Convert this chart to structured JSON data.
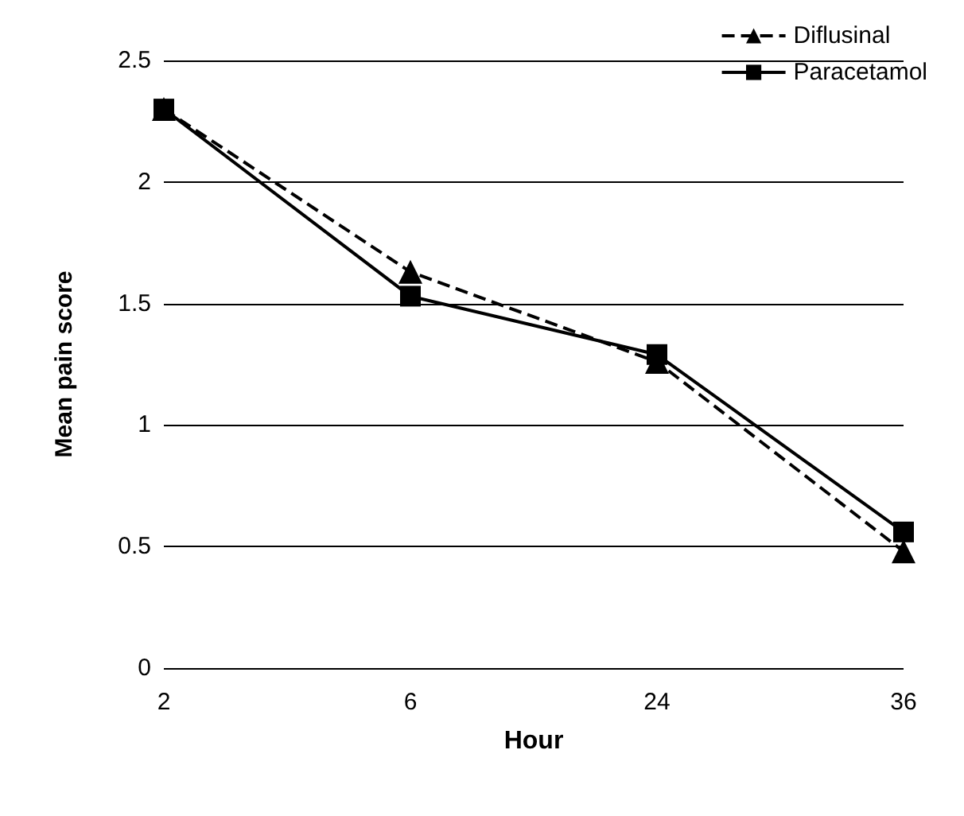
{
  "chart_data": {
    "type": "line",
    "xlabel": "Hour",
    "ylabel": "Mean pain score",
    "categories": [
      "2",
      "6",
      "24",
      "36"
    ],
    "series": [
      {
        "name": "Diflusinal",
        "color": "#000000",
        "values": [
          2.3,
          1.63,
          1.26,
          0.48
        ],
        "marker": "triangle",
        "line_style": "dashed"
      },
      {
        "name": "Paracetamol",
        "color": "#000000",
        "values": [
          2.3,
          1.53,
          1.29,
          0.56
        ],
        "marker": "square",
        "line_style": "solid"
      }
    ],
    "ylim": [
      0,
      2.5
    ],
    "yticks": [
      0,
      0.5,
      1,
      1.5,
      2,
      2.5
    ],
    "grid": "y",
    "legend": "top right"
  }
}
